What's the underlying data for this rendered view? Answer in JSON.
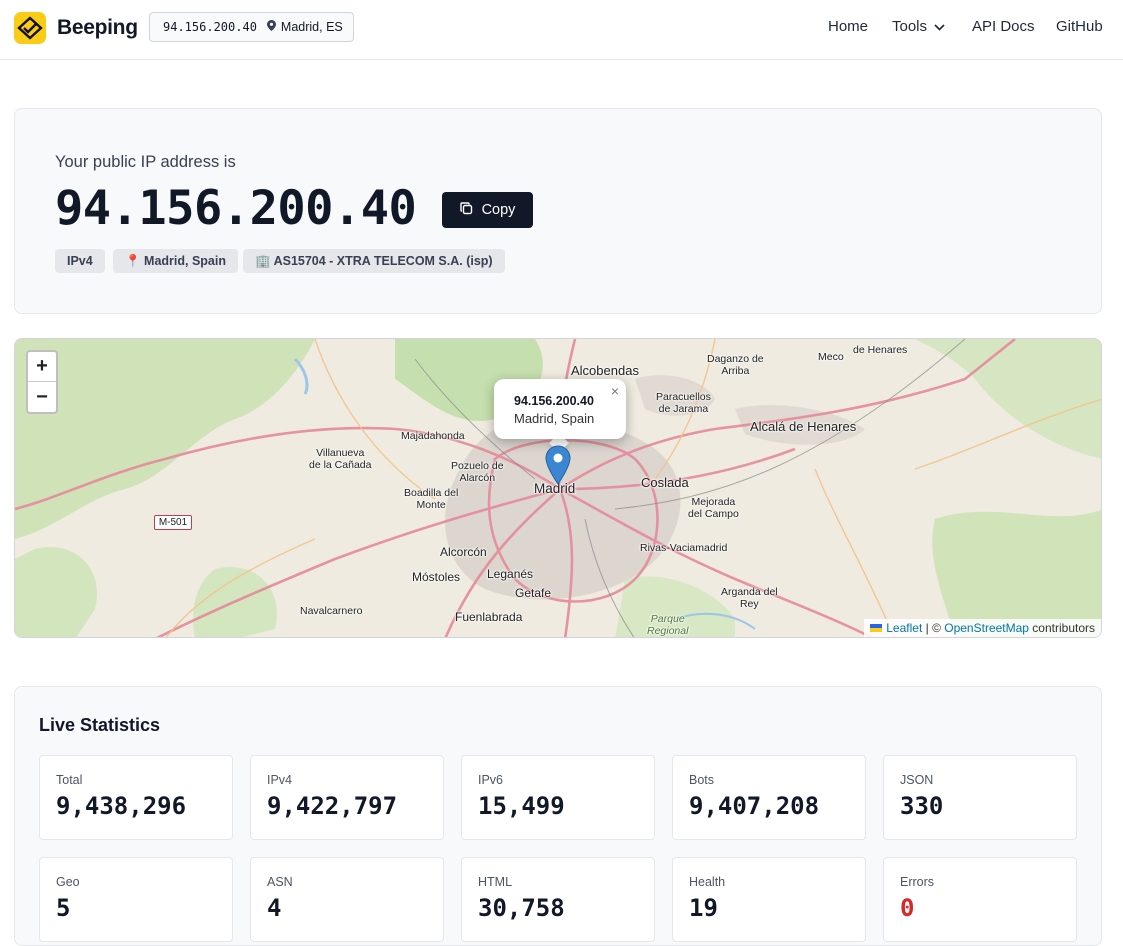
{
  "header": {
    "brand": "Beeping",
    "ip": "94.156.200.40",
    "location": "Madrid, ES",
    "nav": [
      "Home",
      "Tools",
      "API Docs",
      "GitHub"
    ]
  },
  "ip_card": {
    "intro": "Your public IP address is",
    "ip": "94.156.200.40",
    "copy_label": "Copy",
    "tags": [
      "IPv4",
      "📍 Madrid, Spain",
      "🏢 AS15704 - XTRA TELECOM S.A. (isp)"
    ]
  },
  "map": {
    "zoom_in": "+",
    "zoom_out": "−",
    "popup": {
      "ip": "94.156.200.40",
      "location": "Madrid, Spain",
      "close": "×"
    },
    "attribution": {
      "leaflet": "Leaflet",
      "sep": " | © ",
      "osm": "OpenStreetMap",
      "suffix": " contributors"
    },
    "road_shield": "M-501",
    "labels": {
      "alcobendas": "Alcobendas",
      "daganzo": "Daganzo de\nArriba",
      "meco": "Meco",
      "henares_top": "de Henares",
      "paracuellos": "Paracuellos\nde Jarama",
      "alcala": "Alcalá de Henares",
      "majadahonda": "Majadahonda",
      "villanueva": "Villanueva\nde la Cañada",
      "pozuelo": "Pozuelo de\nAlarcón",
      "madrid": "Madrid",
      "coslada": "Coslada",
      "boadilla": "Boadilla del\nMonte",
      "mejorada": "Mejorada\ndel Campo",
      "rivas": "Rivas-Vaciamadrid",
      "alcorcon": "Alcorcón",
      "mostoles": "Móstoles",
      "leganes": "Leganés",
      "getafe": "Getafe",
      "arganda": "Arganda del\nRey",
      "navalcarnero": "Navalcarnero",
      "fuenlabrada": "Fuenlabrada",
      "parque": "Parque\nRegional"
    }
  },
  "stats": {
    "title": "Live Statistics",
    "items": [
      {
        "label": "Total",
        "value": "9,438,296"
      },
      {
        "label": "IPv4",
        "value": "9,422,797"
      },
      {
        "label": "IPv6",
        "value": "15,499"
      },
      {
        "label": "Bots",
        "value": "9,407,208"
      },
      {
        "label": "JSON",
        "value": "330"
      },
      {
        "label": "Geo",
        "value": "5"
      },
      {
        "label": "ASN",
        "value": "4"
      },
      {
        "label": "HTML",
        "value": "30,758"
      },
      {
        "label": "Health",
        "value": "19"
      },
      {
        "label": "Errors",
        "value": "0"
      }
    ]
  },
  "colors": {
    "accent": "#facc15",
    "dark_button": "#111827",
    "error": "#dc2626"
  }
}
